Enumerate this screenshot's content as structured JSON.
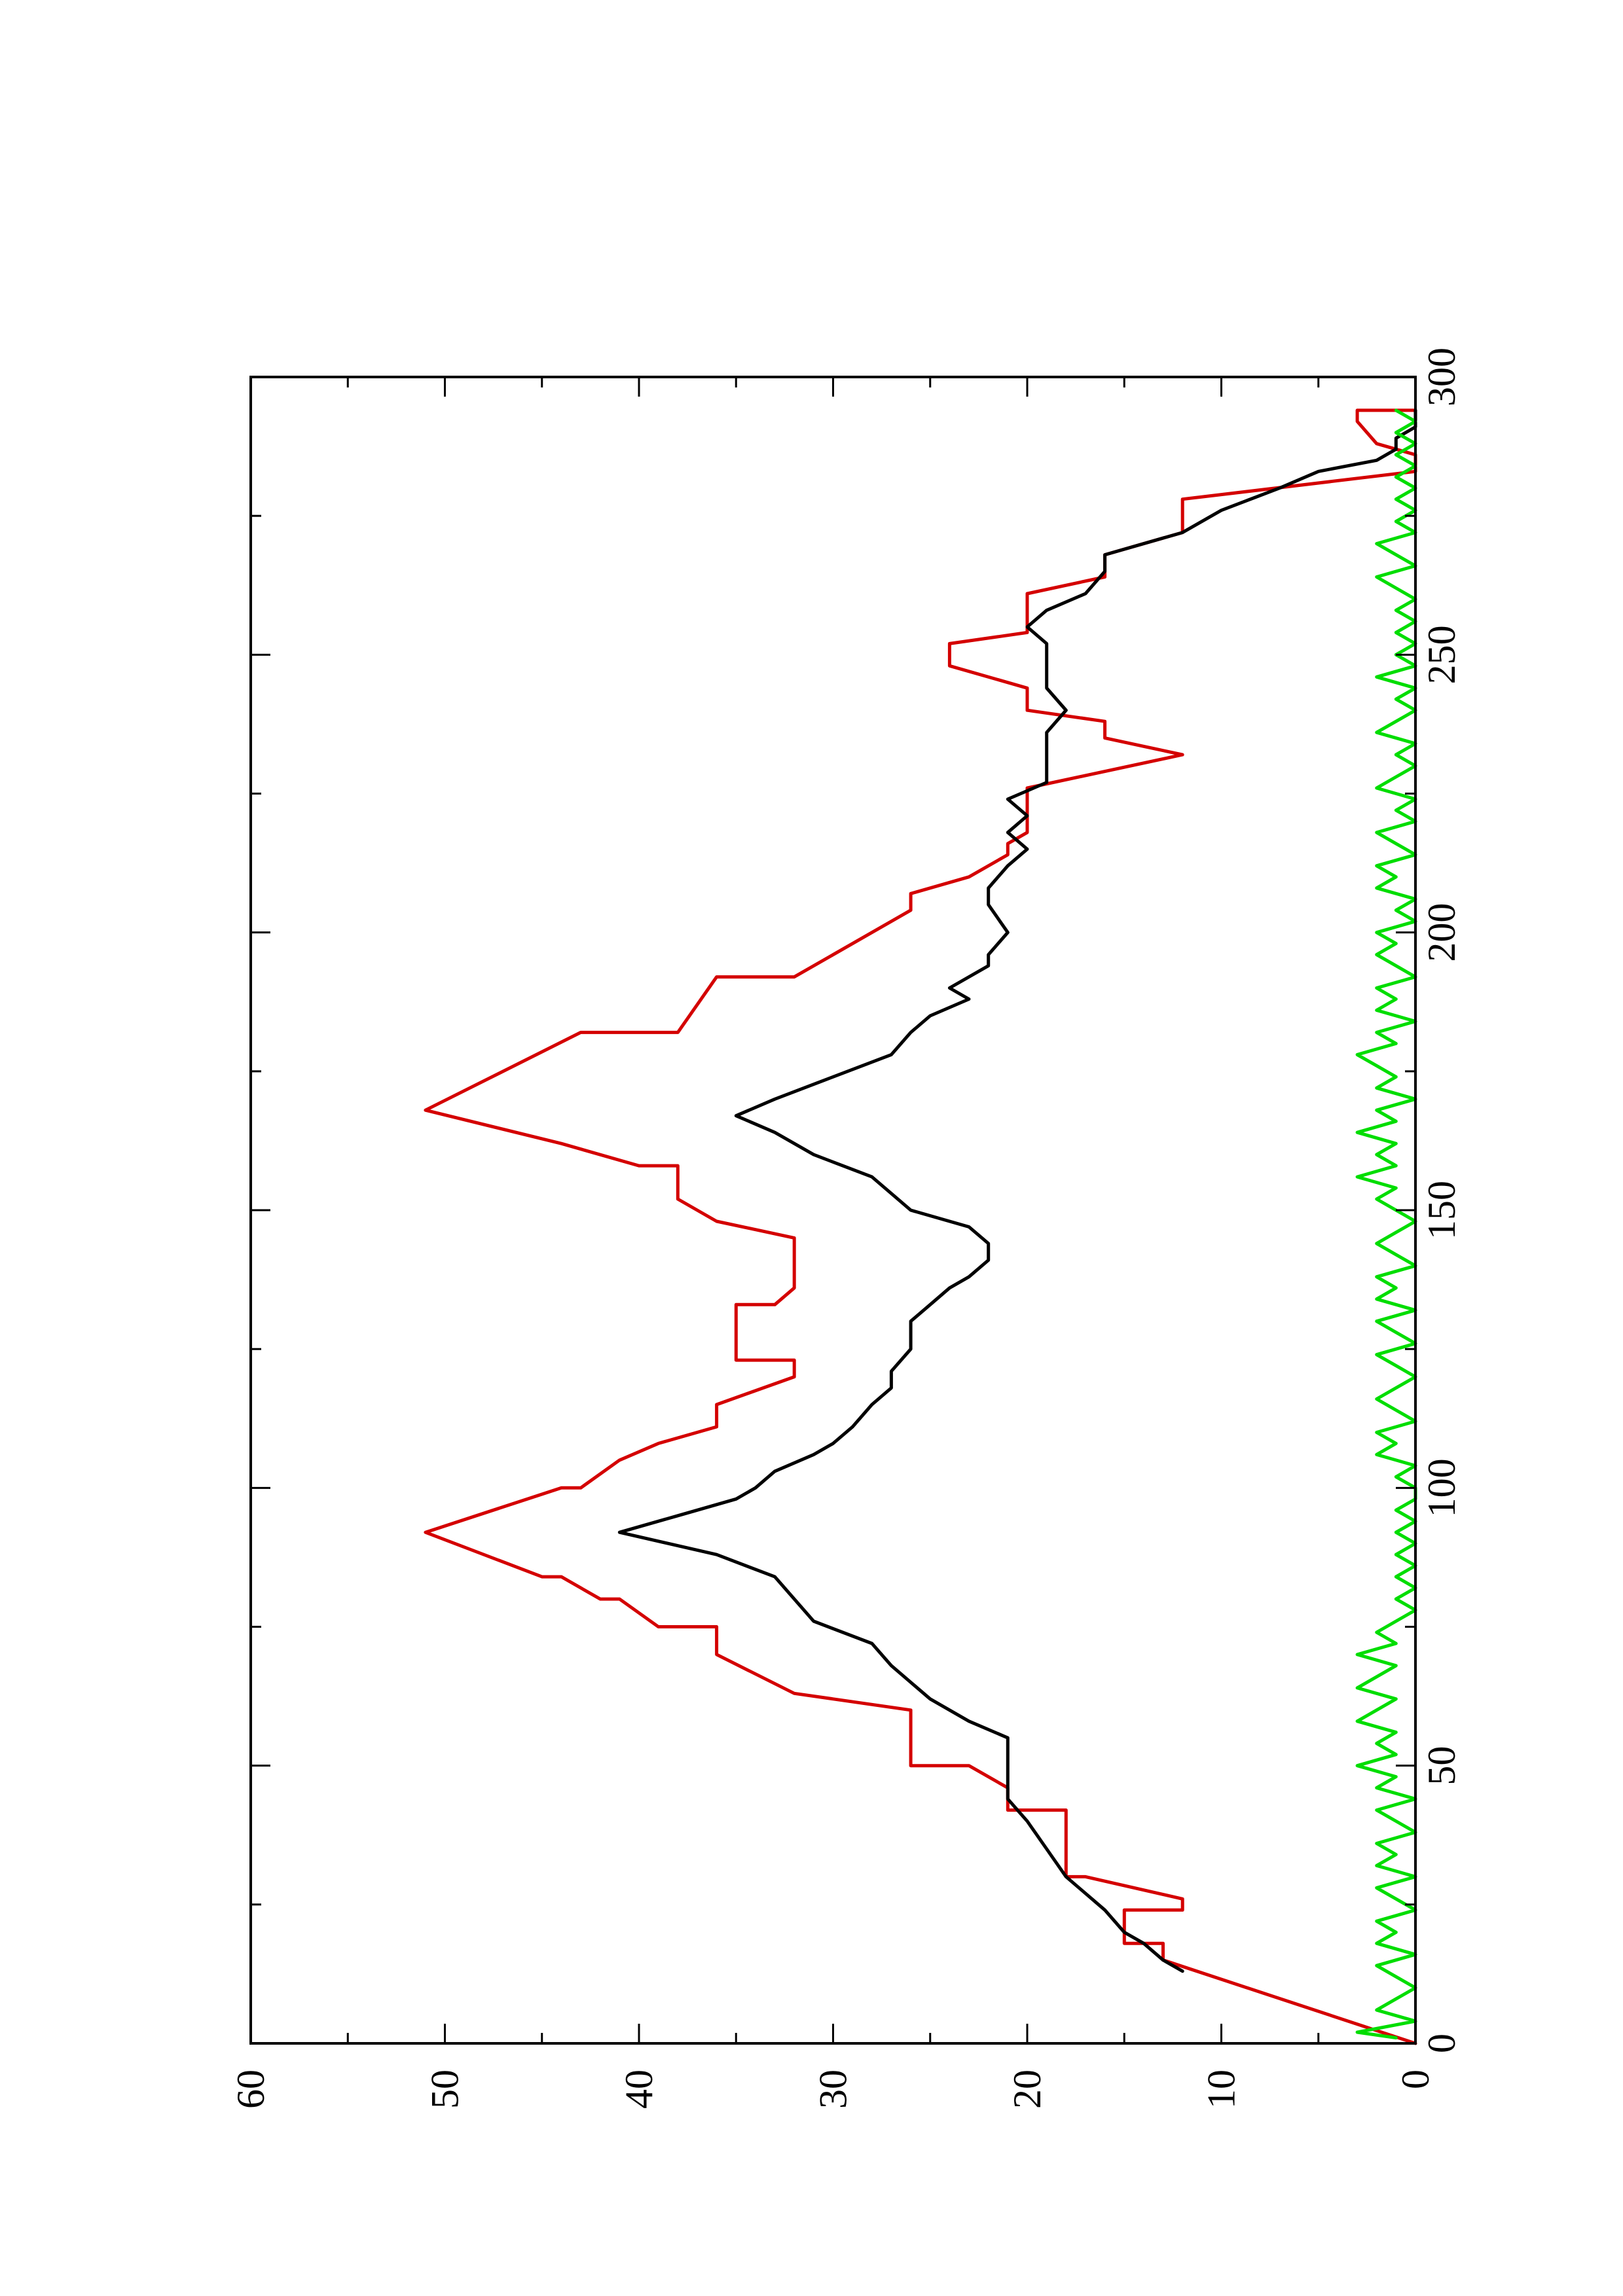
{
  "chart_data": {
    "type": "line",
    "title": "",
    "xlabel": "",
    "ylabel": "",
    "xlim": [
      0,
      300
    ],
    "ylim": [
      0,
      60
    ],
    "x_ticks": [
      0,
      50,
      100,
      150,
      200,
      250,
      300
    ],
    "x_tick_labels": [
      "0",
      "50",
      "100",
      "150",
      "200",
      "250",
      "300"
    ],
    "y_ticks": [
      0,
      10,
      20,
      30,
      40,
      50,
      60
    ],
    "y_tick_labels": [
      "0",
      "10",
      "20",
      "30",
      "40",
      "50",
      "60"
    ],
    "grid": false,
    "legend": "none",
    "orientation": "rotated 90° counter-clockwise on the page",
    "series": [
      {
        "color": "#d40000",
        "style": "piecewise",
        "points": [
          [
            0,
            0
          ],
          [
            15,
            13
          ],
          [
            18,
            13
          ],
          [
            18,
            15
          ],
          [
            24,
            15
          ],
          [
            24,
            12
          ],
          [
            26,
            12
          ],
          [
            30,
            17
          ],
          [
            30,
            18
          ],
          [
            42,
            18
          ],
          [
            42,
            21
          ],
          [
            46,
            21
          ],
          [
            50,
            23
          ],
          [
            50,
            26
          ],
          [
            60,
            26
          ],
          [
            62,
            30
          ],
          [
            63,
            32
          ],
          [
            70,
            36
          ],
          [
            75,
            36
          ],
          [
            75,
            39
          ],
          [
            80,
            41
          ],
          [
            80,
            42
          ],
          [
            84,
            44
          ],
          [
            84,
            45
          ],
          [
            92,
            51
          ],
          [
            100,
            44
          ],
          [
            100,
            43
          ],
          [
            105,
            41
          ],
          [
            108,
            39
          ],
          [
            111,
            36
          ],
          [
            115,
            36
          ],
          [
            120,
            32
          ],
          [
            123,
            32
          ],
          [
            123,
            35
          ],
          [
            128,
            35
          ],
          [
            133,
            35
          ],
          [
            133,
            33
          ],
          [
            136,
            32
          ],
          [
            145,
            32
          ],
          [
            148,
            36
          ],
          [
            152,
            38
          ],
          [
            158,
            38
          ],
          [
            158,
            40
          ],
          [
            162,
            44
          ],
          [
            168,
            51
          ],
          [
            182,
            43
          ],
          [
            182,
            38
          ],
          [
            192,
            36
          ],
          [
            192,
            32
          ],
          [
            204,
            26
          ],
          [
            207,
            26
          ],
          [
            210,
            23
          ],
          [
            214,
            21
          ],
          [
            216,
            21
          ],
          [
            218,
            20
          ],
          [
            226,
            20
          ],
          [
            232,
            12
          ],
          [
            235,
            16
          ],
          [
            238,
            16
          ],
          [
            240,
            20
          ],
          [
            244,
            20
          ],
          [
            248,
            24
          ],
          [
            252,
            24
          ],
          [
            254,
            20
          ],
          [
            261,
            20
          ],
          [
            264,
            16
          ],
          [
            268,
            16
          ],
          [
            272,
            12
          ],
          [
            278,
            12
          ],
          [
            283,
            0
          ],
          [
            286,
            0
          ],
          [
            288,
            2
          ],
          [
            292,
            3
          ],
          [
            294,
            3
          ],
          [
            294,
            0
          ]
        ]
      },
      {
        "color": "#000000",
        "style": "smooth",
        "points": [
          [
            13,
            12
          ],
          [
            15,
            13
          ],
          [
            18,
            14
          ],
          [
            20,
            15
          ],
          [
            24,
            16
          ],
          [
            27,
            17
          ],
          [
            30,
            18
          ],
          [
            35,
            19
          ],
          [
            40,
            20
          ],
          [
            44,
            21
          ],
          [
            48,
            21
          ],
          [
            52,
            21
          ],
          [
            55,
            21
          ],
          [
            58,
            23
          ],
          [
            62,
            25
          ],
          [
            65,
            26
          ],
          [
            68,
            27
          ],
          [
            72,
            28
          ],
          [
            76,
            31
          ],
          [
            80,
            32
          ],
          [
            84,
            33
          ],
          [
            88,
            36
          ],
          [
            92,
            41
          ],
          [
            95,
            38
          ],
          [
            98,
            35
          ],
          [
            100,
            34
          ],
          [
            103,
            33
          ],
          [
            106,
            31
          ],
          [
            108,
            30
          ],
          [
            111,
            29
          ],
          [
            115,
            28
          ],
          [
            118,
            27
          ],
          [
            121,
            27
          ],
          [
            125,
            26
          ],
          [
            130,
            26
          ],
          [
            133,
            25
          ],
          [
            136,
            24
          ],
          [
            138,
            23
          ],
          [
            141,
            22
          ],
          [
            144,
            22
          ],
          [
            147,
            23
          ],
          [
            150,
            26
          ],
          [
            153,
            27
          ],
          [
            156,
            28
          ],
          [
            160,
            31
          ],
          [
            164,
            33
          ],
          [
            167,
            35
          ],
          [
            170,
            33
          ],
          [
            174,
            30
          ],
          [
            178,
            27
          ],
          [
            182,
            26
          ],
          [
            185,
            25
          ],
          [
            188,
            23
          ],
          [
            190,
            24
          ],
          [
            194,
            22
          ],
          [
            196,
            22
          ],
          [
            200,
            21
          ],
          [
            205,
            22
          ],
          [
            208,
            22
          ],
          [
            212,
            21
          ],
          [
            215,
            20
          ],
          [
            218,
            21
          ],
          [
            221,
            20
          ],
          [
            224,
            21
          ],
          [
            227,
            19
          ],
          [
            230,
            19
          ],
          [
            233,
            19
          ],
          [
            236,
            19
          ],
          [
            240,
            18
          ],
          [
            244,
            19
          ],
          [
            248,
            19
          ],
          [
            252,
            19
          ],
          [
            255,
            20
          ],
          [
            258,
            19
          ],
          [
            261,
            17
          ],
          [
            265,
            16
          ],
          [
            268,
            16
          ],
          [
            272,
            12
          ],
          [
            276,
            10
          ],
          [
            280,
            7
          ],
          [
            283,
            5
          ],
          [
            285,
            2
          ],
          [
            287,
            1
          ],
          [
            289,
            1
          ],
          [
            291,
            0
          ],
          [
            294,
            0
          ]
        ]
      },
      {
        "color": "#00dd00",
        "style": "noisy",
        "points": [
          [
            1,
            1
          ],
          [
            2,
            3
          ],
          [
            4,
            0
          ],
          [
            6,
            2
          ],
          [
            8,
            1
          ],
          [
            10,
            0
          ],
          [
            12,
            1
          ],
          [
            14,
            2
          ],
          [
            16,
            0
          ],
          [
            18,
            2
          ],
          [
            20,
            1
          ],
          [
            22,
            2
          ],
          [
            24,
            0
          ],
          [
            26,
            1
          ],
          [
            28,
            2
          ],
          [
            30,
            0
          ],
          [
            32,
            2
          ],
          [
            34,
            1
          ],
          [
            36,
            2
          ],
          [
            38,
            0
          ],
          [
            40,
            1
          ],
          [
            42,
            2
          ],
          [
            44,
            0
          ],
          [
            46,
            2
          ],
          [
            48,
            1
          ],
          [
            50,
            3
          ],
          [
            52,
            1
          ],
          [
            54,
            2
          ],
          [
            56,
            1
          ],
          [
            58,
            3
          ],
          [
            60,
            2
          ],
          [
            62,
            1
          ],
          [
            64,
            3
          ],
          [
            66,
            2
          ],
          [
            68,
            1
          ],
          [
            70,
            3
          ],
          [
            72,
            1
          ],
          [
            74,
            2
          ],
          [
            76,
            1
          ],
          [
            78,
            0
          ],
          [
            80,
            1
          ],
          [
            82,
            0
          ],
          [
            84,
            1
          ],
          [
            86,
            0
          ],
          [
            88,
            1
          ],
          [
            90,
            0
          ],
          [
            92,
            1
          ],
          [
            94,
            0
          ],
          [
            96,
            1
          ],
          [
            98,
            0
          ],
          [
            100,
            0
          ],
          [
            102,
            1
          ],
          [
            104,
            0
          ],
          [
            106,
            2
          ],
          [
            108,
            1
          ],
          [
            110,
            2
          ],
          [
            112,
            0
          ],
          [
            114,
            1
          ],
          [
            116,
            2
          ],
          [
            118,
            1
          ],
          [
            120,
            0
          ],
          [
            122,
            1
          ],
          [
            124,
            2
          ],
          [
            126,
            0
          ],
          [
            128,
            1
          ],
          [
            130,
            2
          ],
          [
            132,
            0
          ],
          [
            134,
            2
          ],
          [
            136,
            1
          ],
          [
            138,
            2
          ],
          [
            140,
            0
          ],
          [
            142,
            1
          ],
          [
            144,
            2
          ],
          [
            146,
            1
          ],
          [
            148,
            0
          ],
          [
            150,
            1
          ],
          [
            152,
            2
          ],
          [
            154,
            1
          ],
          [
            156,
            3
          ],
          [
            158,
            1
          ],
          [
            160,
            2
          ],
          [
            162,
            1
          ],
          [
            164,
            3
          ],
          [
            166,
            1
          ],
          [
            168,
            2
          ],
          [
            170,
            0
          ],
          [
            172,
            2
          ],
          [
            174,
            1
          ],
          [
            176,
            2
          ],
          [
            178,
            3
          ],
          [
            180,
            1
          ],
          [
            182,
            2
          ],
          [
            184,
            0
          ],
          [
            186,
            2
          ],
          [
            188,
            1
          ],
          [
            190,
            2
          ],
          [
            192,
            0
          ],
          [
            194,
            1
          ],
          [
            196,
            2
          ],
          [
            198,
            1
          ],
          [
            200,
            2
          ],
          [
            202,
            0
          ],
          [
            204,
            1
          ],
          [
            206,
            0
          ],
          [
            208,
            2
          ],
          [
            210,
            1
          ],
          [
            212,
            2
          ],
          [
            214,
            0
          ],
          [
            216,
            1
          ],
          [
            218,
            2
          ],
          [
            220,
            0
          ],
          [
            222,
            1
          ],
          [
            224,
            0
          ],
          [
            226,
            2
          ],
          [
            228,
            1
          ],
          [
            230,
            0
          ],
          [
            232,
            1
          ],
          [
            234,
            0
          ],
          [
            236,
            2
          ],
          [
            238,
            1
          ],
          [
            240,
            0
          ],
          [
            242,
            1
          ],
          [
            244,
            0
          ],
          [
            246,
            2
          ],
          [
            248,
            0
          ],
          [
            250,
            1
          ],
          [
            252,
            0
          ],
          [
            254,
            1
          ],
          [
            256,
            0
          ],
          [
            258,
            1
          ],
          [
            260,
            0
          ],
          [
            262,
            1
          ],
          [
            264,
            2
          ],
          [
            266,
            0
          ],
          [
            268,
            1
          ],
          [
            270,
            2
          ],
          [
            272,
            0
          ],
          [
            274,
            1
          ],
          [
            276,
            0
          ],
          [
            278,
            1
          ],
          [
            280,
            0
          ],
          [
            282,
            1
          ],
          [
            284,
            0
          ],
          [
            286,
            1
          ],
          [
            288,
            0
          ],
          [
            290,
            1
          ],
          [
            292,
            0
          ],
          [
            294,
            1
          ]
        ]
      }
    ]
  }
}
